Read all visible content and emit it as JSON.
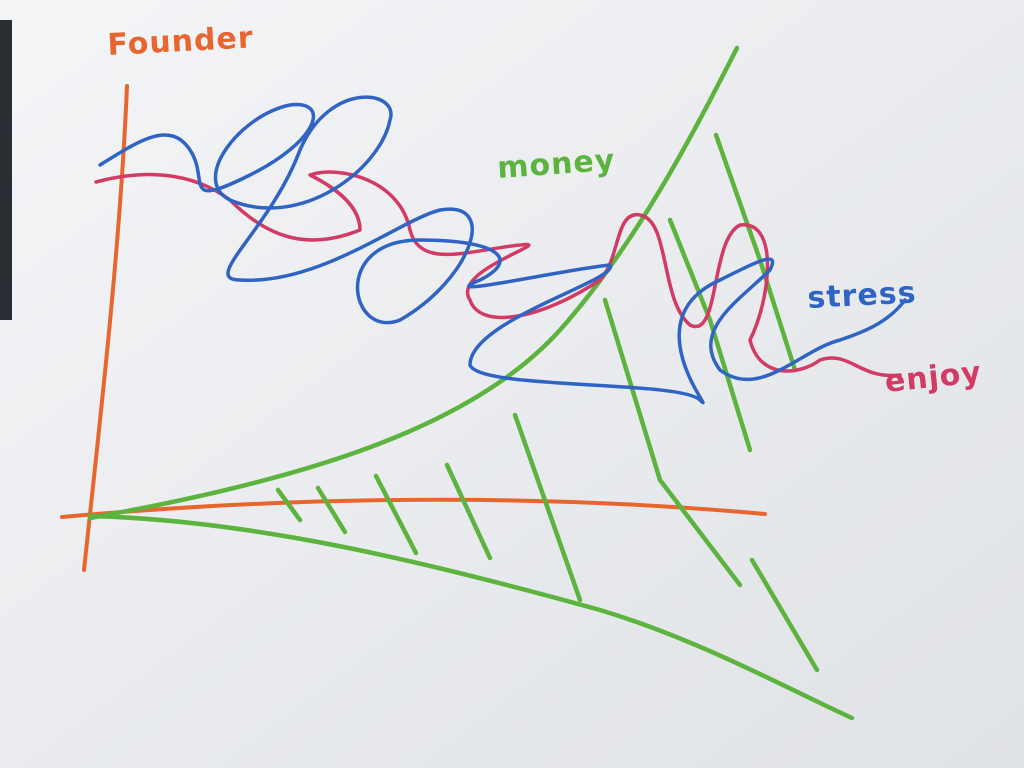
{
  "title": "Founder",
  "curves": [
    {
      "label": "money"
    },
    {
      "label": "stress"
    },
    {
      "label": "enjoy"
    }
  ]
}
